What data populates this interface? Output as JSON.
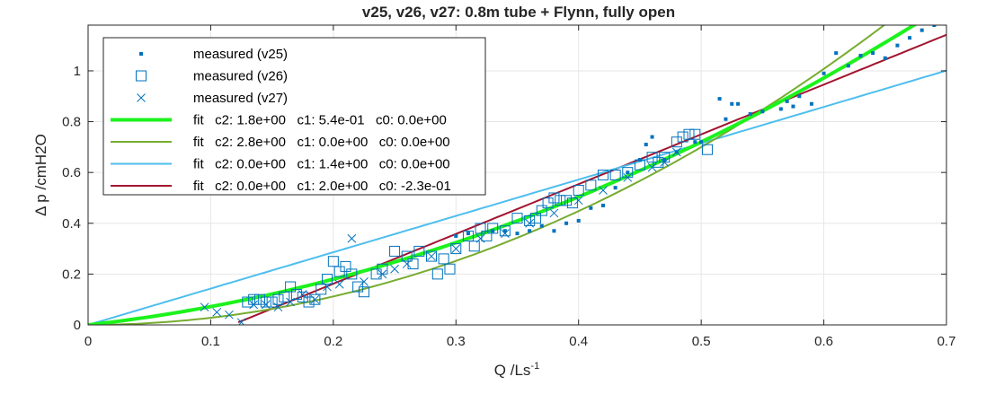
{
  "chart_data": {
    "type": "scatter",
    "title": "v25, v26, v27: 0.8m tube + Flynn, fully open",
    "xlabel": "Q /Ls",
    "xlabel_sup": "-1",
    "ylabel": "Δ p /cmH2O",
    "xlim": [
      0,
      0.7
    ],
    "ylim": [
      0,
      1.18
    ],
    "x_ticks": [
      0,
      0.1,
      0.2,
      0.3,
      0.4,
      0.5,
      0.6,
      0.7
    ],
    "x_tick_labels": [
      "0",
      "0.1",
      "0.2",
      "0.3",
      "0.4",
      "0.5",
      "0.6",
      "0.7"
    ],
    "y_ticks": [
      0,
      0.2,
      0.4,
      0.6,
      0.8,
      1
    ],
    "y_tick_labels": [
      "0",
      "0.2",
      "0.4",
      "0.6",
      "0.8",
      "1"
    ],
    "grid": true,
    "legend_position": "top-left",
    "series": [
      {
        "name": "measured (v25)",
        "kind": "dot",
        "color": "#0072bd",
        "points": [
          [
            0.5,
            0.72
          ],
          [
            0.52,
            0.81
          ],
          [
            0.53,
            0.87
          ],
          [
            0.54,
            0.83
          ],
          [
            0.55,
            0.84
          ],
          [
            0.57,
            0.88
          ],
          [
            0.58,
            0.9
          ],
          [
            0.59,
            0.87
          ],
          [
            0.6,
            0.99
          ],
          [
            0.61,
            1.07
          ],
          [
            0.62,
            1.02
          ],
          [
            0.63,
            1.06
          ],
          [
            0.64,
            1.07
          ],
          [
            0.65,
            1.05
          ],
          [
            0.66,
            1.1
          ],
          [
            0.67,
            1.13
          ],
          [
            0.68,
            1.16
          ],
          [
            0.69,
            1.18
          ],
          [
            0.695,
            1.19
          ],
          [
            0.7,
            1.19
          ],
          [
            0.515,
            0.89
          ],
          [
            0.525,
            0.87
          ],
          [
            0.495,
            0.72
          ],
          [
            0.48,
            0.68
          ],
          [
            0.47,
            0.65
          ],
          [
            0.46,
            0.74
          ],
          [
            0.455,
            0.71
          ],
          [
            0.44,
            0.6
          ],
          [
            0.43,
            0.54
          ],
          [
            0.42,
            0.47
          ],
          [
            0.41,
            0.46
          ],
          [
            0.4,
            0.41
          ],
          [
            0.39,
            0.4
          ],
          [
            0.38,
            0.37
          ],
          [
            0.37,
            0.39
          ],
          [
            0.36,
            0.37
          ],
          [
            0.35,
            0.36
          ],
          [
            0.34,
            0.37
          ],
          [
            0.33,
            0.37
          ],
          [
            0.3,
            0.35
          ],
          [
            0.31,
            0.36
          ],
          [
            0.45,
            0.65
          ],
          [
            0.565,
            0.85
          ],
          [
            0.575,
            0.86
          ]
        ]
      },
      {
        "name": "measured (v26)",
        "kind": "square",
        "color": "#0072bd",
        "points": [
          [
            0.13,
            0.09
          ],
          [
            0.135,
            0.1
          ],
          [
            0.14,
            0.1
          ],
          [
            0.145,
            0.09
          ],
          [
            0.15,
            0.09
          ],
          [
            0.155,
            0.1
          ],
          [
            0.16,
            0.11
          ],
          [
            0.165,
            0.15
          ],
          [
            0.17,
            0.12
          ],
          [
            0.175,
            0.11
          ],
          [
            0.18,
            0.09
          ],
          [
            0.185,
            0.1
          ],
          [
            0.19,
            0.14
          ],
          [
            0.195,
            0.18
          ],
          [
            0.2,
            0.25
          ],
          [
            0.205,
            0.21
          ],
          [
            0.21,
            0.23
          ],
          [
            0.215,
            0.2
          ],
          [
            0.22,
            0.15
          ],
          [
            0.225,
            0.13
          ],
          [
            0.235,
            0.2
          ],
          [
            0.24,
            0.22
          ],
          [
            0.25,
            0.29
          ],
          [
            0.26,
            0.27
          ],
          [
            0.265,
            0.24
          ],
          [
            0.27,
            0.29
          ],
          [
            0.28,
            0.27
          ],
          [
            0.285,
            0.2
          ],
          [
            0.29,
            0.26
          ],
          [
            0.295,
            0.22
          ],
          [
            0.3,
            0.3
          ],
          [
            0.31,
            0.35
          ],
          [
            0.315,
            0.31
          ],
          [
            0.32,
            0.38
          ],
          [
            0.325,
            0.35
          ],
          [
            0.33,
            0.38
          ],
          [
            0.34,
            0.37
          ],
          [
            0.35,
            0.42
          ],
          [
            0.36,
            0.41
          ],
          [
            0.365,
            0.42
          ],
          [
            0.37,
            0.45
          ],
          [
            0.375,
            0.48
          ],
          [
            0.38,
            0.5
          ],
          [
            0.385,
            0.49
          ],
          [
            0.39,
            0.49
          ],
          [
            0.395,
            0.48
          ],
          [
            0.4,
            0.53
          ],
          [
            0.41,
            0.55
          ],
          [
            0.42,
            0.59
          ],
          [
            0.43,
            0.59
          ],
          [
            0.44,
            0.6
          ],
          [
            0.45,
            0.63
          ],
          [
            0.46,
            0.66
          ],
          [
            0.465,
            0.64
          ],
          [
            0.47,
            0.66
          ],
          [
            0.48,
            0.72
          ],
          [
            0.485,
            0.74
          ],
          [
            0.49,
            0.75
          ],
          [
            0.495,
            0.75
          ],
          [
            0.505,
            0.69
          ]
        ]
      },
      {
        "name": "measured (v27)",
        "kind": "x",
        "color": "#0072bd",
        "points": [
          [
            0.095,
            0.07
          ],
          [
            0.105,
            0.05
          ],
          [
            0.115,
            0.04
          ],
          [
            0.125,
            0.01
          ],
          [
            0.135,
            0.08
          ],
          [
            0.145,
            0.08
          ],
          [
            0.155,
            0.07
          ],
          [
            0.165,
            0.09
          ],
          [
            0.175,
            0.12
          ],
          [
            0.185,
            0.1
          ],
          [
            0.195,
            0.15
          ],
          [
            0.205,
            0.16
          ],
          [
            0.215,
            0.34
          ],
          [
            0.225,
            0.17
          ],
          [
            0.24,
            0.2
          ],
          [
            0.25,
            0.22
          ],
          [
            0.26,
            0.24
          ],
          [
            0.28,
            0.27
          ],
          [
            0.3,
            0.3
          ],
          [
            0.32,
            0.34
          ],
          [
            0.34,
            0.36
          ],
          [
            0.36,
            0.4
          ],
          [
            0.38,
            0.44
          ],
          [
            0.4,
            0.49
          ],
          [
            0.42,
            0.53
          ],
          [
            0.44,
            0.58
          ],
          [
            0.46,
            0.62
          ],
          [
            0.47,
            0.64
          ],
          [
            0.48,
            0.68
          ]
        ]
      },
      {
        "name": "fit   c2: 1.8e+00   c1: 5.4e-01   c0: 0.0e+00",
        "kind": "fit",
        "color": "#1cf21c",
        "width": 4,
        "c2": 1.8,
        "c1": 0.54,
        "c0": 0.0
      },
      {
        "name": "fit   c2: 2.8e+00   c1: 0.0e+00   c0: 0.0e+00",
        "kind": "fit",
        "color": "#77ac30",
        "width": 2,
        "c2": 2.8,
        "c1": 0.0,
        "c0": 0.0
      },
      {
        "name": "fit   c2: 0.0e+00   c1: 1.4e+00   c0: 0.0e+00",
        "kind": "fit",
        "color": "#4dbeee",
        "width": 2,
        "c2": 0.0,
        "c1": 1.43,
        "c0": 0.0
      },
      {
        "name": "fit   c2: 0.0e+00   c1: 2.0e+00   c0: -2.3e-01",
        "kind": "fit",
        "color": "#a2142f",
        "width": 2,
        "c2": 0.0,
        "c1": 1.96,
        "c0": -0.23
      }
    ]
  }
}
